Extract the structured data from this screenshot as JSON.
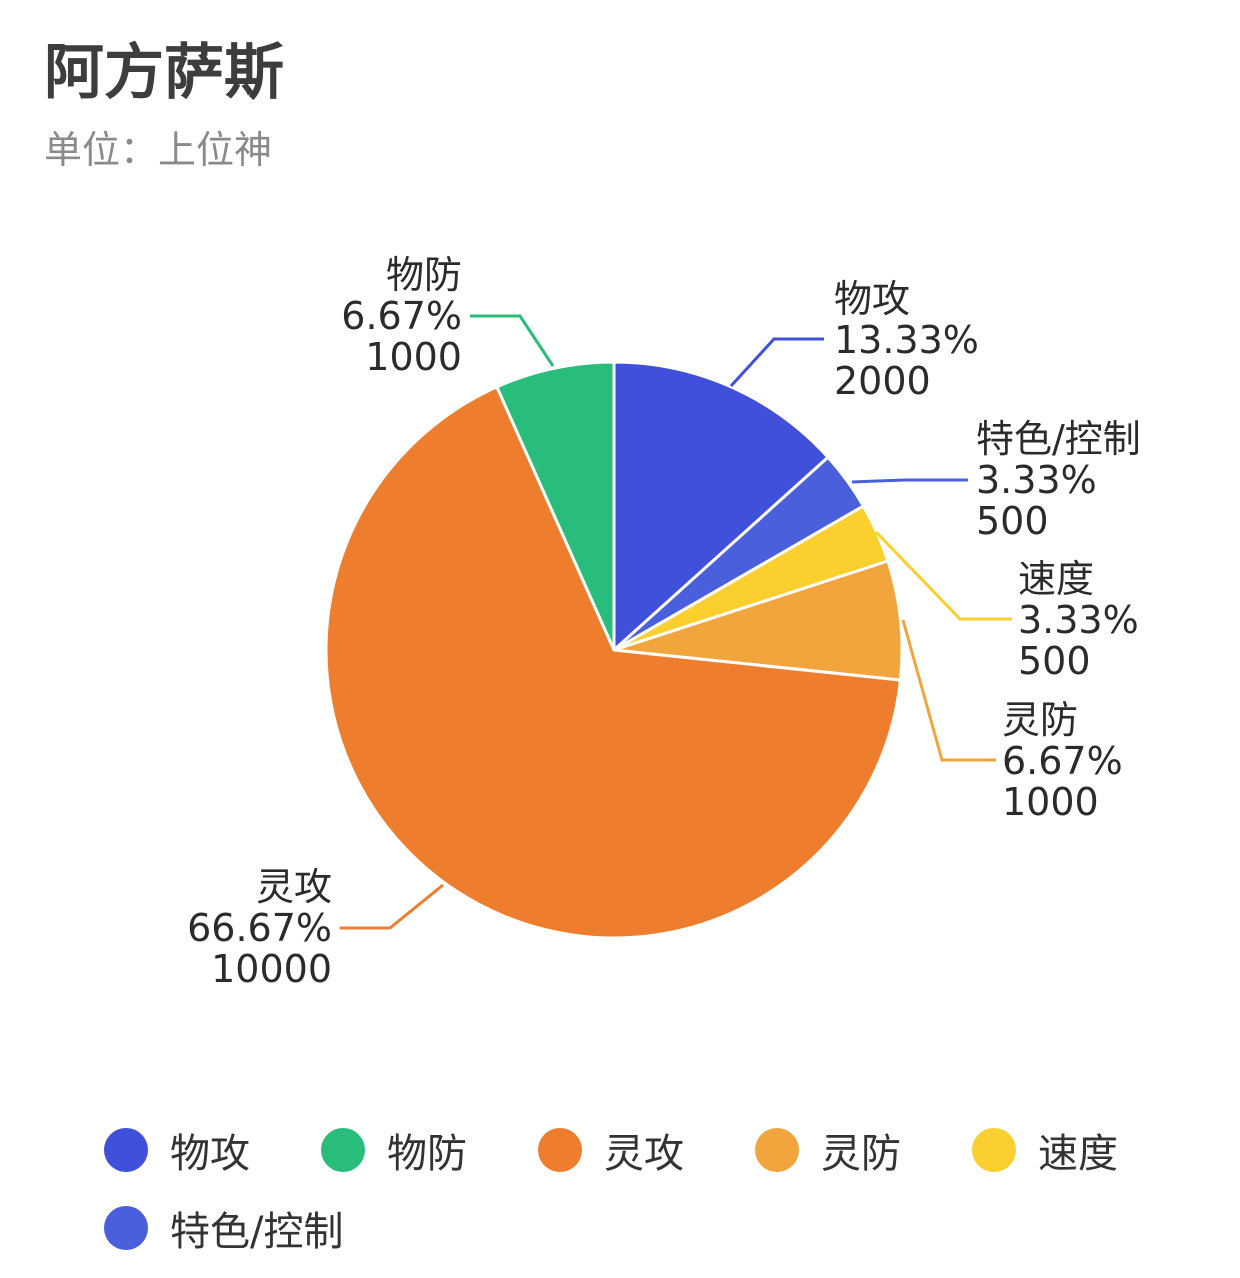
{
  "title": "阿方萨斯",
  "subtitle": "单位：上位神",
  "chart_data": {
    "type": "pie",
    "categories": [
      "物攻",
      "特色/控制",
      "速度",
      "灵防",
      "灵攻",
      "物防"
    ],
    "values": [
      2000,
      500,
      500,
      1000,
      10000,
      1000
    ],
    "percent_labels": [
      "13.33%",
      "3.33%",
      "3.33%",
      "6.67%",
      "66.67%",
      "6.67%"
    ],
    "value_labels": [
      "2000",
      "500",
      "500",
      "1000",
      "10000",
      "1000"
    ],
    "colors": [
      "#4050DA",
      "#4A5FDC",
      "#FBCF2E",
      "#F2A53C",
      "#EE7E2E",
      "#28BD7B"
    ],
    "start_angle": "12 o'clock",
    "direction": "clockwise",
    "legend_position": "bottom"
  },
  "legend": {
    "items": [
      {
        "label": "物攻",
        "color": "#4050DA"
      },
      {
        "label": "物防",
        "color": "#28BD7B"
      },
      {
        "label": "灵攻",
        "color": "#EE7E2E"
      },
      {
        "label": "灵防",
        "color": "#F2A53C"
      },
      {
        "label": "速度",
        "color": "#FBCF2E"
      },
      {
        "label": "特色/控制",
        "color": "#4A5FDC"
      }
    ]
  }
}
